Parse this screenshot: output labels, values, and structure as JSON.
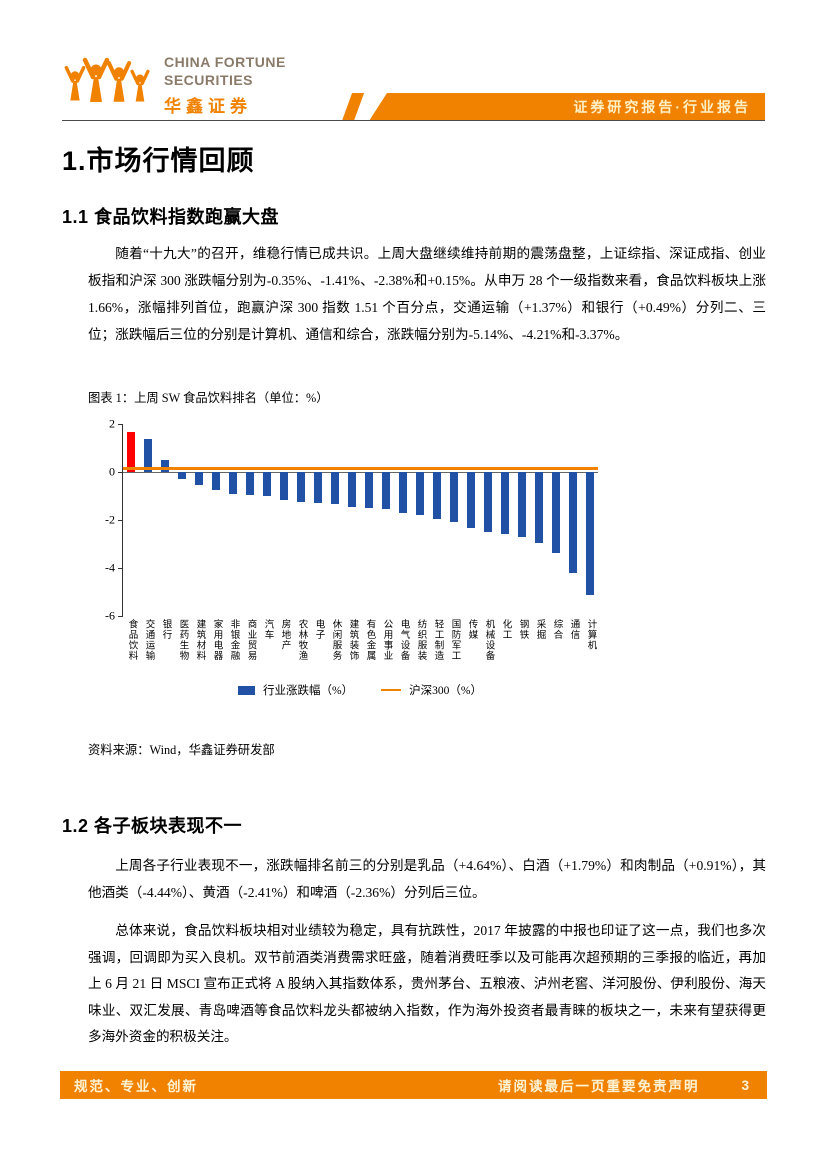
{
  "theme": {
    "accent_orange": "#F08200",
    "logo_gray": "#8A7A68",
    "bar_blue": "#2151A5",
    "highlight_red": "#FF0000"
  },
  "header": {
    "logo": {
      "company_en_line1": "CHINA FORTUNE",
      "company_en_line2": "SECURITIES",
      "company_cn": "华鑫证券"
    },
    "banner": "证券研究报告·行业报告"
  },
  "content": {
    "h1": "1.市场行情回顾",
    "s11_title": "1.1 食品饮料指数跑赢大盘",
    "s11_para": "随着“十九大”的召开，维稳行情已成共识。上周大盘继续维持前期的震荡盘整，上证综指、深证成指、创业板指和沪深 300 涨跌幅分别为-0.35%、-1.41%、-2.38%和+0.15%。从申万 28 个一级指数来看，食品饮料板块上涨 1.66%，涨幅排列首位，跑赢沪深 300 指数 1.51 个百分点，交通运输（+1.37%）和银行（+0.49%）分列二、三位；涨跌幅后三位的分别是计算机、通信和综合，涨跌幅分别为-5.14%、-4.21%和-3.37%。",
    "chart_caption": "图表 1：上周 SW 食品饮料排名（单位：%）",
    "source": "资料来源：Wind，华鑫证券研发部",
    "s12_title": "1.2 各子板块表现不一",
    "s12_para1": "上周各子行业表现不一，涨跌幅排名前三的分别是乳品（+4.64%）、白酒（+1.79%）和肉制品（+0.91%），其他酒类（-4.44%）、黄酒（-2.41%）和啤酒（-2.36%）分列后三位。",
    "s12_para2": "总体来说，食品饮料板块相对业绩较为稳定，具有抗跌性，2017 年披露的中报也印证了这一点，我们也多次强调，回调即为买入良机。双节前酒类消费需求旺盛，随着消费旺季以及可能再次超预期的三季报的临近，再加上 6 月 21 日 MSCI 宣布正式将 A 股纳入其指数体系，贵州茅台、五粮液、泸州老窖、洋河股份、伊利股份、海天味业、双汇发展、青岛啤酒等食品饮料龙头都被纳入指数，作为海外投资者最青睐的板块之一，未来有望获得更多海外资金的积极关注。"
  },
  "chart_data": {
    "type": "bar",
    "title": "上周SW食品饮料排名（单位：%）",
    "categories": [
      "食品饮料",
      "交通运输",
      "银行",
      "医药生物",
      "建筑材料",
      "家用电器",
      "非银金融",
      "商业贸易",
      "汽车",
      "房地产",
      "农林牧渔",
      "电子",
      "休闲服务",
      "建筑装饰",
      "有色金属",
      "公用事业",
      "电气设备",
      "纺织服装",
      "轻工制造",
      "国防军工",
      "传媒",
      "机械设备",
      "化工",
      "钢铁",
      "采掘",
      "综合",
      "通信",
      "计算机"
    ],
    "series": [
      {
        "name": "行业涨跌幅（%）",
        "type": "bar",
        "values": [
          1.66,
          1.37,
          0.49,
          -0.3,
          -0.55,
          -0.75,
          -0.9,
          -0.95,
          -1.0,
          -1.15,
          -1.25,
          -1.3,
          -1.35,
          -1.45,
          -1.5,
          -1.55,
          -1.7,
          -1.8,
          -1.95,
          -2.1,
          -2.35,
          -2.5,
          -2.6,
          -2.7,
          -2.95,
          -3.37,
          -4.21,
          -5.14
        ]
      },
      {
        "name": "沪深300（%）",
        "type": "line",
        "value": 0.15
      }
    ],
    "ylim": [
      -6,
      2
    ],
    "yticks": [
      2,
      0,
      -2,
      -4,
      -6
    ],
    "grid": false,
    "legend_position": "bottom",
    "highlight_index": 0,
    "colors": {
      "bar": "#2151A5",
      "highlight_bar": "#FF0000",
      "benchmark_line": "#F08200"
    }
  },
  "footer": {
    "left": "规范、专业、创新",
    "right": "请阅读最后一页重要免责声明",
    "page": "3"
  }
}
